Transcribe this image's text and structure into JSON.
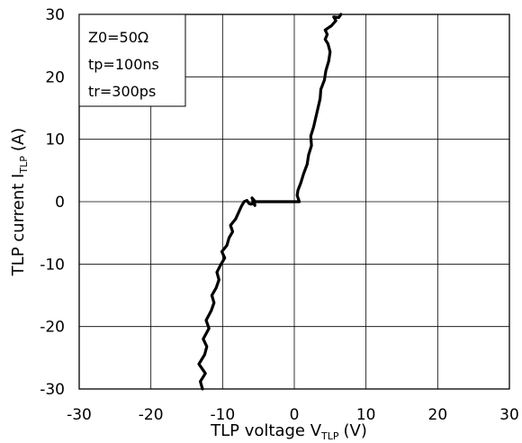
{
  "chart_data": {
    "type": "line",
    "xlabel": {
      "main": "TLP voltage V",
      "sub": "TLP",
      "unit": "(V)"
    },
    "ylabel": {
      "main": "TLP current I",
      "sub": "TLP",
      "unit": "(A)"
    },
    "xlim": [
      -30,
      30
    ],
    "ylim": [
      -30,
      30
    ],
    "xticks": [
      -30,
      -20,
      -10,
      0,
      10,
      20,
      30
    ],
    "yticks": [
      -30,
      -20,
      -10,
      0,
      10,
      20,
      30
    ],
    "grid": true,
    "annotation": [
      "Z0=50Ω",
      "tp=100ns",
      "tr=300ps"
    ],
    "series": [
      {
        "color": "#000000",
        "x": [
          -12.8,
          -13.1,
          -12.4,
          -13.3,
          -12.5,
          -12.2,
          -12.7,
          -11.9,
          -12.3,
          -11.6,
          -11.2,
          -11.5,
          -10.9,
          -10.5,
          -10.8,
          -10.3,
          -9.7,
          -10.1,
          -9.4,
          -9.1,
          -8.6,
          -8.9,
          -8.2,
          -7.8,
          -7.4,
          -7.0,
          -6.6,
          -6.3,
          -6.0,
          -5.7,
          -5.5,
          -5.6,
          -5.9,
          -5.7,
          -5.8,
          0.0,
          0.7,
          0.4,
          0.5,
          0.9,
          1.3,
          1.8,
          2.0,
          2.4,
          2.3,
          2.7,
          3.0,
          3.3,
          3.6,
          3.7,
          4.2,
          4.4,
          4.8,
          5.0,
          4.7,
          4.3,
          4.6,
          4.3,
          5.2,
          5.8,
          5.5,
          6.2,
          6.5
        ],
        "y": [
          -30.0,
          -28.8,
          -27.5,
          -26.0,
          -24.5,
          -23.2,
          -22.0,
          -20.3,
          -19.0,
          -17.5,
          -16.2,
          -15.0,
          -13.8,
          -12.5,
          -11.3,
          -10.2,
          -9.0,
          -8.0,
          -7.0,
          -5.8,
          -4.8,
          -3.8,
          -2.8,
          -1.8,
          -0.8,
          0.0,
          0.2,
          -0.3,
          -0.4,
          -0.2,
          -0.6,
          0.2,
          0.6,
          0.0,
          0.0,
          0.0,
          0.0,
          1.0,
          1.8,
          3.0,
          4.5,
          6.0,
          7.5,
          9.0,
          10.5,
          12.0,
          13.5,
          15.0,
          16.5,
          18.0,
          19.5,
          21.0,
          22.5,
          24.0,
          25.3,
          26.0,
          26.8,
          27.5,
          28.2,
          29.0,
          29.6,
          29.5,
          30.0
        ]
      }
    ]
  }
}
